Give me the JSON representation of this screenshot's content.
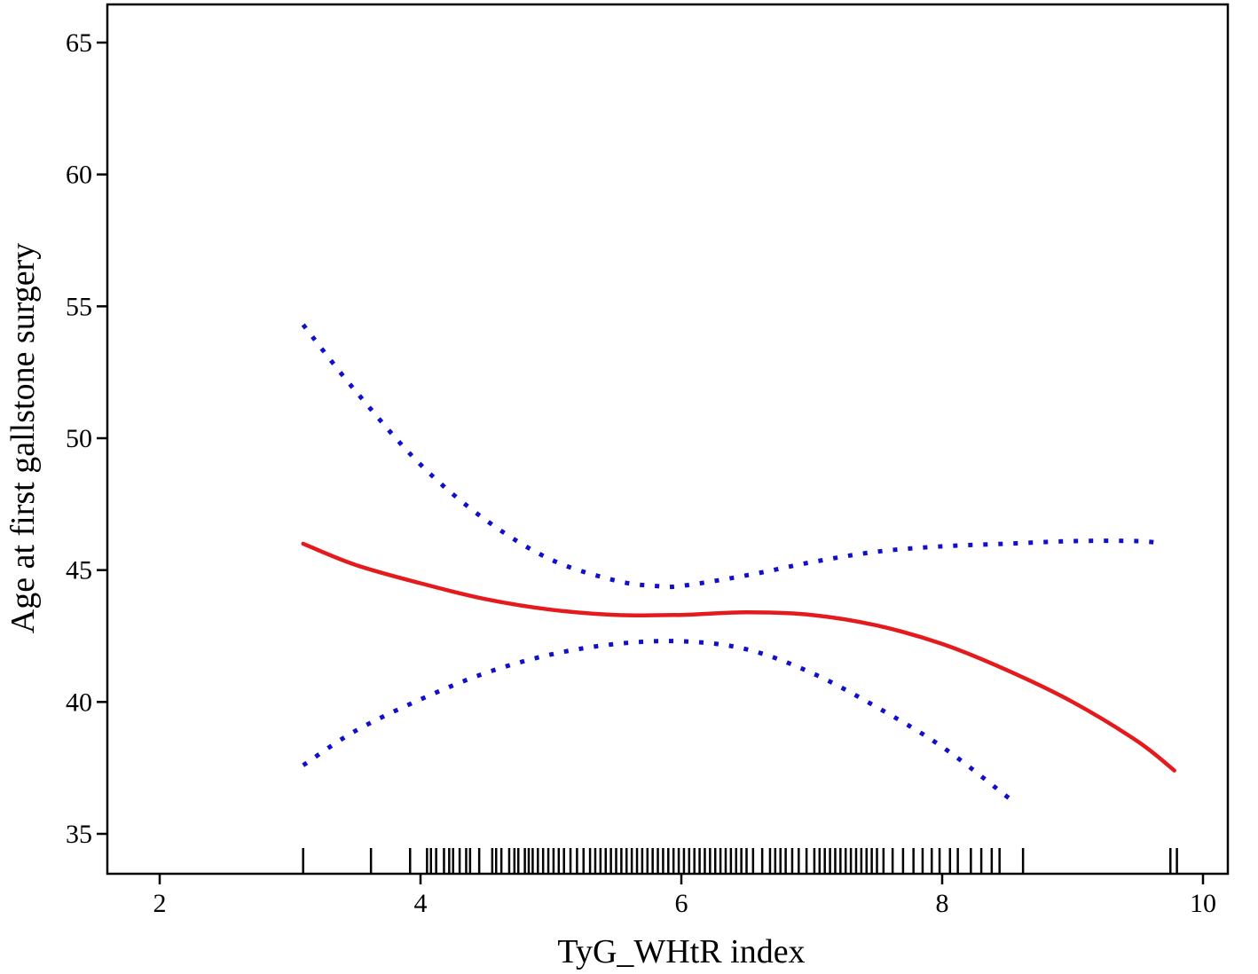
{
  "chart_data": {
    "type": "line",
    "title": "",
    "xlabel": "TyG_WHtR index",
    "ylabel": "Age at first gallstone surgery",
    "xlim": [
      1.6,
      10.15
    ],
    "ylim": [
      33.5,
      66.5
    ],
    "xticks": [
      2,
      4,
      6,
      8,
      10
    ],
    "yticks": [
      35,
      40,
      45,
      50,
      55,
      60,
      65
    ],
    "grid": false,
    "legend": "none",
    "colors": {
      "fit": "#e41a1c",
      "ci": "#1010cc",
      "rug": "#000000"
    },
    "series": [
      {
        "role": "fit",
        "style": "solid",
        "x": [
          3.1,
          3.5,
          4.0,
          4.5,
          5.0,
          5.5,
          6.0,
          6.5,
          7.0,
          7.5,
          8.0,
          8.5,
          9.0,
          9.5,
          9.78
        ],
        "y": [
          46.0,
          45.2,
          44.5,
          43.9,
          43.5,
          43.3,
          43.3,
          43.4,
          43.3,
          42.9,
          42.2,
          41.2,
          40.0,
          38.5,
          37.4
        ]
      },
      {
        "role": "ci-upper",
        "style": "dotted",
        "x": [
          3.1,
          3.5,
          4.0,
          4.5,
          5.0,
          5.5,
          5.8,
          6.0,
          6.5,
          7.0,
          7.5,
          8.0,
          8.5,
          9.0,
          9.5,
          9.7
        ],
        "y": [
          54.3,
          51.8,
          49.0,
          46.9,
          45.4,
          44.6,
          44.4,
          44.4,
          44.8,
          45.3,
          45.7,
          45.9,
          46.0,
          46.1,
          46.1,
          46.0
        ]
      },
      {
        "role": "ci-lower",
        "style": "dotted",
        "x": [
          3.1,
          3.5,
          4.0,
          4.5,
          5.0,
          5.5,
          6.0,
          6.5,
          7.0,
          7.5,
          8.0,
          8.5,
          8.55
        ],
        "y": [
          37.6,
          38.9,
          40.1,
          41.1,
          41.8,
          42.2,
          42.3,
          42.0,
          41.1,
          39.8,
          38.3,
          36.4,
          36.2
        ]
      }
    ],
    "rug": [
      3.1,
      3.62,
      3.92,
      4.05,
      4.08,
      4.12,
      4.18,
      4.22,
      4.25,
      4.3,
      4.35,
      4.38,
      4.45,
      4.55,
      4.58,
      4.62,
      4.68,
      4.72,
      4.75,
      4.8,
      4.83,
      4.86,
      4.9,
      4.94,
      4.98,
      5.02,
      5.06,
      5.1,
      5.15,
      5.2,
      5.25,
      5.3,
      5.34,
      5.38,
      5.42,
      5.46,
      5.5,
      5.54,
      5.58,
      5.62,
      5.66,
      5.7,
      5.74,
      5.78,
      5.82,
      5.86,
      5.9,
      5.94,
      5.98,
      6.02,
      6.06,
      6.1,
      6.14,
      6.18,
      6.22,
      6.26,
      6.3,
      6.34,
      6.38,
      6.42,
      6.46,
      6.5,
      6.55,
      6.62,
      6.68,
      6.72,
      6.76,
      6.8,
      6.85,
      6.9,
      6.96,
      7.02,
      7.06,
      7.1,
      7.14,
      7.18,
      7.22,
      7.26,
      7.3,
      7.34,
      7.38,
      7.42,
      7.46,
      7.5,
      7.55,
      7.62,
      7.7,
      7.78,
      7.85,
      7.92,
      7.98,
      8.06,
      8.12,
      8.22,
      8.3,
      8.38,
      8.44,
      8.62,
      9.75,
      9.8
    ]
  }
}
